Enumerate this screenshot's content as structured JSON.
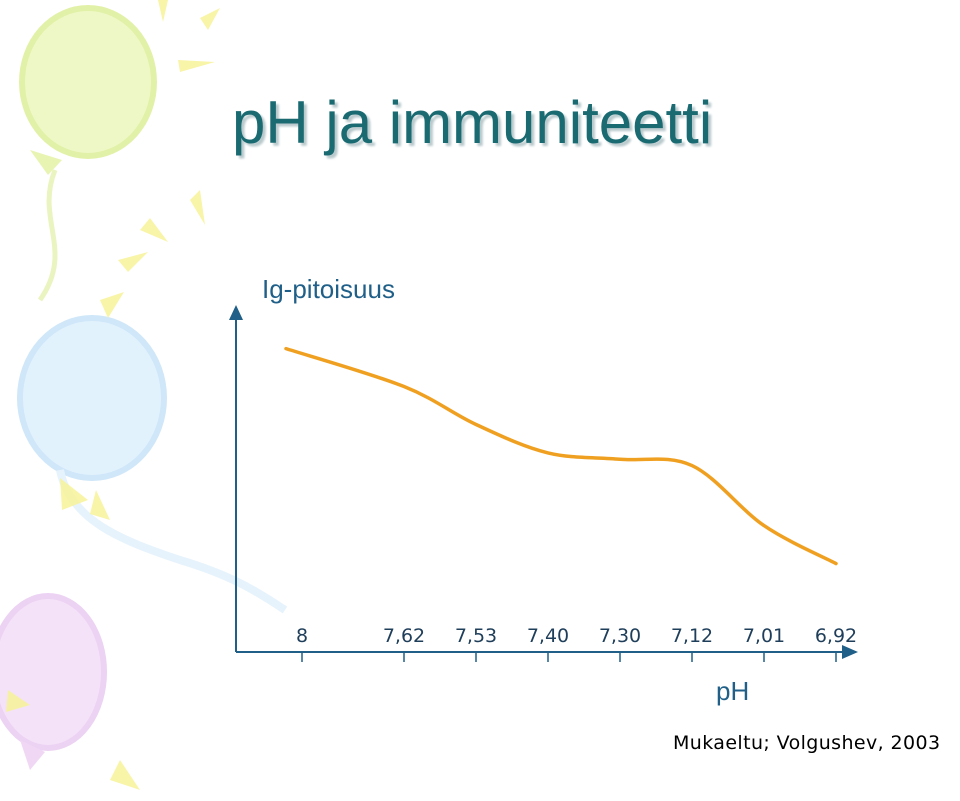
{
  "slide": {
    "title": "pH ja immuniteetti",
    "source": "Mukaeltu; Volgushev, 2003"
  },
  "chart_data": {
    "type": "line",
    "xlabel": "pH",
    "ylabel": "Ig-pitoisuus",
    "categories": [
      "8",
      "7,62",
      "7,53",
      "7,40",
      "7,30",
      "7,12",
      "7,01",
      "6,92"
    ],
    "x": [
      8,
      7.62,
      7.53,
      7.4,
      7.3,
      7.12,
      7.01,
      6.92
    ],
    "series": [
      {
        "values": [
          0.96,
          0.84,
          0.72,
          0.63,
          0.61,
          0.59,
          0.4,
          0.28
        ],
        "color": "#f0a020"
      }
    ],
    "ylim": [
      0,
      1
    ],
    "grid": false,
    "legend": "none",
    "axis_color": "#1f5f88"
  },
  "decor": {
    "balloon_colors": [
      "#eaf6b8",
      "#d9eefc",
      "#f1d9f6"
    ],
    "ray_color": "#f6f08a"
  }
}
